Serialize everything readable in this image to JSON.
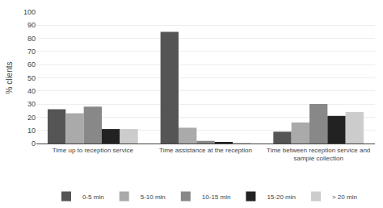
{
  "chart_data": {
    "type": "bar",
    "categories": [
      "Time up to reception service",
      "Time assistance at the reception",
      "Time between reception service and\nsample collection"
    ],
    "series": [
      {
        "name": "0-5 min",
        "color": "#555555",
        "values": [
          26,
          85,
          9
        ]
      },
      {
        "name": "5-10 min",
        "color": "#aaaaaa",
        "values": [
          23,
          12,
          16
        ]
      },
      {
        "name": "10-15 min",
        "color": "#888888",
        "values": [
          28,
          2,
          30
        ]
      },
      {
        "name": "15-20 min",
        "color": "#222222",
        "values": [
          11,
          1,
          21
        ]
      },
      {
        "name": "> 20 min",
        "color": "#cccccc",
        "values": [
          11,
          0.5,
          24
        ]
      }
    ],
    "ylabel": "% clients",
    "ylim": [
      0,
      100
    ],
    "yticks": [
      0,
      10,
      20,
      30,
      40,
      50,
      60,
      70,
      80,
      90,
      100
    ],
    "grid": true,
    "legend": "bottom"
  }
}
